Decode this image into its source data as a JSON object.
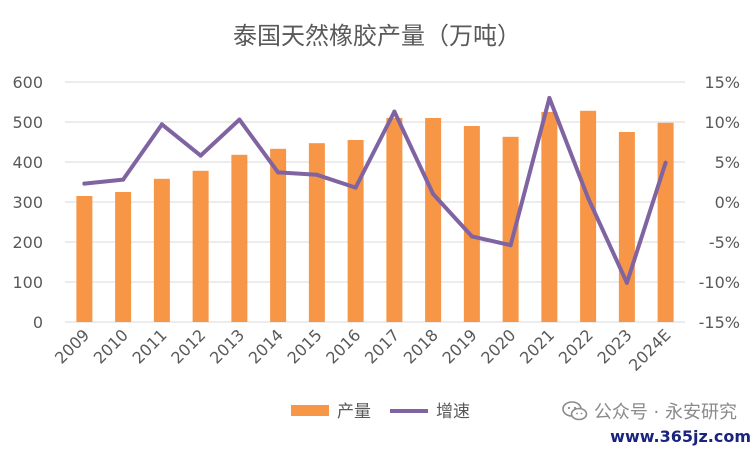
{
  "chart_data": {
    "type": "bar+line",
    "title": "泰国天然橡胶产量（万吨）",
    "categories": [
      "2009",
      "2010",
      "2011",
      "2012",
      "2013",
      "2014",
      "2015",
      "2016",
      "2017",
      "2018",
      "2019",
      "2020",
      "2021",
      "2022",
      "2023",
      "2024E"
    ],
    "series": [
      {
        "name": "产量",
        "type": "bar",
        "axis": "left",
        "color": "#F79646",
        "values": [
          315,
          325,
          358,
          378,
          418,
          433,
          447,
          455,
          510,
          510,
          490,
          463,
          525,
          528,
          475,
          498
        ]
      },
      {
        "name": "增速",
        "type": "line",
        "axis": "right",
        "color": "#8064A2",
        "values": [
          2.3,
          2.8,
          9.7,
          5.8,
          10.3,
          3.7,
          3.4,
          1.8,
          11.3,
          1.0,
          -4.3,
          -5.4,
          13.0,
          0.5,
          -10.1,
          4.9
        ]
      }
    ],
    "y_left": {
      "min": 0,
      "max": 600,
      "ticks": [
        "0",
        "100",
        "200",
        "300",
        "400",
        "500",
        "600"
      ]
    },
    "y_right": {
      "min": -15,
      "max": 15,
      "ticks": [
        "-15%",
        "-10%",
        "-5%",
        "0%",
        "5%",
        "10%",
        "15%"
      ]
    },
    "grid": true,
    "legend": "bottom"
  },
  "watermark": {
    "text": "公众号 · 永安研究",
    "icon": "wechat-icon"
  },
  "site_badge": "www.365jz.com"
}
